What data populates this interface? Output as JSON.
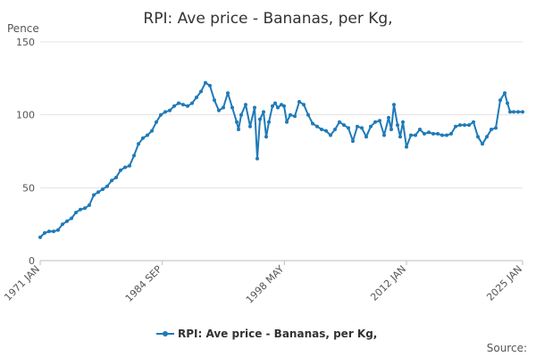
{
  "chart_data": {
    "type": "line",
    "title": "RPI: Ave price - Bananas, per Kg,",
    "ylabel": "Pence",
    "xlabel": "",
    "ylim": [
      0,
      150
    ],
    "y_ticks": [
      0,
      50,
      100,
      150
    ],
    "x_ticks": [
      {
        "label": "1971 JAN",
        "year": 1971.0
      },
      {
        "label": "1984 SEP",
        "year": 1984.67
      },
      {
        "label": "1998 MAY",
        "year": 1998.33
      },
      {
        "label": "2012 JAN",
        "year": 2012.0
      },
      {
        "label": "2025 JAN",
        "year": 2025.0
      }
    ],
    "xlim": [
      1971.0,
      2025.0
    ],
    "grid": true,
    "legend": "bottom",
    "color": "#1f7ab8",
    "series": [
      {
        "name": "RPI: Ave price - Bananas, per Kg,",
        "x": [
          1971.0,
          1971.5,
          1972.0,
          1972.5,
          1973.0,
          1973.5,
          1974.0,
          1974.5,
          1975.0,
          1975.5,
          1976.0,
          1976.5,
          1977.0,
          1977.5,
          1978.0,
          1978.5,
          1979.0,
          1979.5,
          1980.0,
          1980.5,
          1981.0,
          1981.5,
          1982.0,
          1982.5,
          1983.0,
          1983.5,
          1984.0,
          1984.5,
          1985.0,
          1985.5,
          1986.0,
          1986.5,
          1987.0,
          1987.5,
          1988.0,
          1988.5,
          1989.0,
          1989.5,
          1990.0,
          1990.5,
          1991.0,
          1991.5,
          1992.0,
          1992.5,
          1993.0,
          1993.2,
          1993.5,
          1994.0,
          1994.5,
          1995.0,
          1995.3,
          1995.6,
          1996.0,
          1996.3,
          1996.6,
          1997.0,
          1997.3,
          1997.6,
          1998.0,
          1998.3,
          1998.6,
          1999.0,
          1999.5,
          2000.0,
          2000.5,
          2001.0,
          2001.5,
          2002.0,
          2002.5,
          2003.0,
          2003.5,
          2004.0,
          2004.5,
          2005.0,
          2005.5,
          2006.0,
          2006.5,
          2007.0,
          2007.5,
          2008.0,
          2008.5,
          2009.0,
          2009.5,
          2010.0,
          2010.3,
          2010.6,
          2011.0,
          2011.3,
          2011.6,
          2012.0,
          2012.5,
          2013.0,
          2013.5,
          2014.0,
          2014.5,
          2015.0,
          2015.5,
          2016.0,
          2016.5,
          2017.0,
          2017.5,
          2018.0,
          2018.5,
          2019.0,
          2019.5,
          2020.0,
          2020.5,
          2021.0,
          2021.5,
          2022.0,
          2022.5,
          2023.0,
          2023.3,
          2023.6,
          2024.0,
          2024.5,
          2025.0
        ],
        "values": [
          16,
          19,
          20,
          20,
          21,
          25,
          27,
          29,
          33,
          35,
          36,
          38,
          45,
          47,
          49,
          51,
          55,
          57,
          62,
          64,
          65,
          72,
          80,
          84,
          86,
          89,
          95,
          100,
          102,
          103,
          106,
          108,
          107,
          106,
          108,
          112,
          116,
          122,
          120,
          110,
          103,
          105,
          115,
          105,
          95,
          90,
          100,
          107,
          92,
          105,
          70,
          97,
          102,
          85,
          95,
          106,
          108,
          105,
          107,
          106,
          95,
          100,
          99,
          109,
          107,
          100,
          94,
          92,
          90,
          89,
          86,
          90,
          95,
          93,
          91,
          82,
          92,
          91,
          85,
          92,
          95,
          96,
          86,
          98,
          90,
          107,
          93,
          85,
          95,
          78,
          86,
          86,
          90,
          87,
          88,
          87,
          87,
          86,
          86,
          87,
          92,
          93,
          93,
          93,
          95,
          85,
          80,
          85,
          90,
          91,
          110,
          115,
          108,
          102,
          102,
          102,
          102
        ]
      }
    ]
  },
  "legend_label": "RPI: Ave price - Bananas, per Kg,",
  "source_label": "Source:"
}
